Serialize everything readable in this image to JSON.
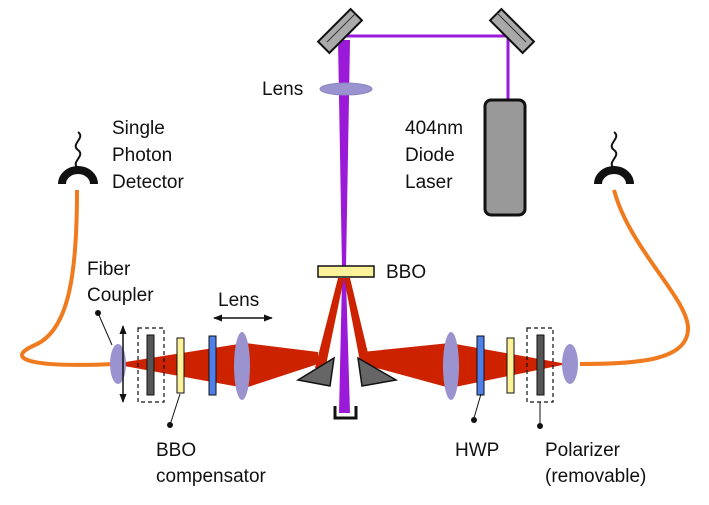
{
  "labels": {
    "single_photon_detector": [
      "Single",
      "Photon",
      "Detector"
    ],
    "fiber_coupler": [
      "Fiber",
      "Coupler"
    ],
    "lens_top": "Lens",
    "lens_left": "Lens",
    "laser": [
      "404nm",
      "Diode",
      "Laser"
    ],
    "bbo": "BBO",
    "bbo_compensator": [
      "BBO",
      "compensator"
    ],
    "hwp": "HWP",
    "polarizer": [
      "Polarizer",
      "(removable)"
    ]
  },
  "colors": {
    "pump_beam": "#9a1ad8",
    "photon_beam": "#cc2200",
    "fiber": "#f07a1e",
    "lens": "#9a93d0",
    "bbo": "#fbf29a",
    "hwp": "#4f7fe8",
    "polarizer": "#555555",
    "laser_body": "#999999",
    "mirror": "#aaaaaa"
  }
}
